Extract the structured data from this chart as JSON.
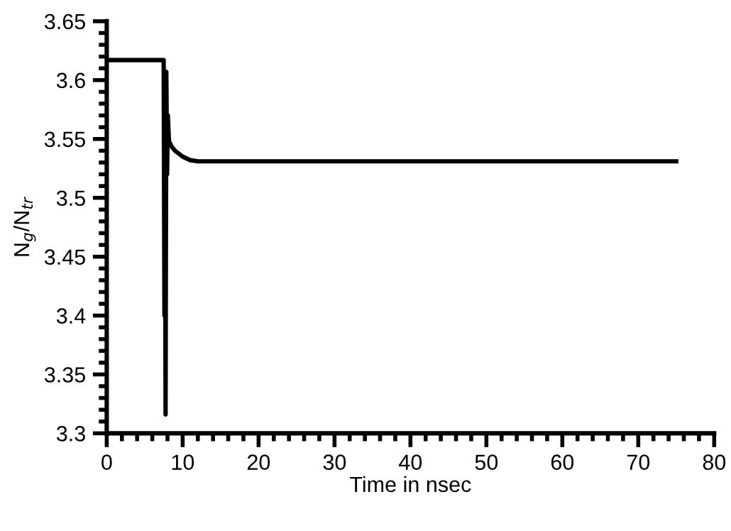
{
  "chart_data": {
    "type": "line",
    "xlabel": "Time in nsec",
    "ylabel": "N$_{g}$/N$_{tr}$",
    "series": [
      {
        "color": "#000000",
        "x": [
          0,
          7.5,
          7.6,
          7.65,
          7.75,
          7.85,
          7.95,
          8.05,
          8.2,
          8.6,
          9,
          10,
          11,
          12,
          75
        ],
        "values": [
          3.617,
          3.617,
          3.4,
          3.605,
          3.316,
          3.607,
          3.52,
          3.57,
          3.548,
          3.543,
          3.54,
          3.535,
          3.532,
          3.531,
          3.531
        ]
      }
    ],
    "xlim": [
      0,
      80
    ],
    "xticks": [
      0,
      10,
      20,
      30,
      40,
      50,
      60,
      70,
      80
    ],
    "ylim": [
      3.3,
      3.65
    ],
    "yticks": [
      3.3,
      3.35,
      3.4,
      3.45,
      3.5,
      3.55,
      3.6,
      3.65
    ],
    "grid": false,
    "legend": false,
    "marker": "none",
    "line_style": "solid"
  }
}
